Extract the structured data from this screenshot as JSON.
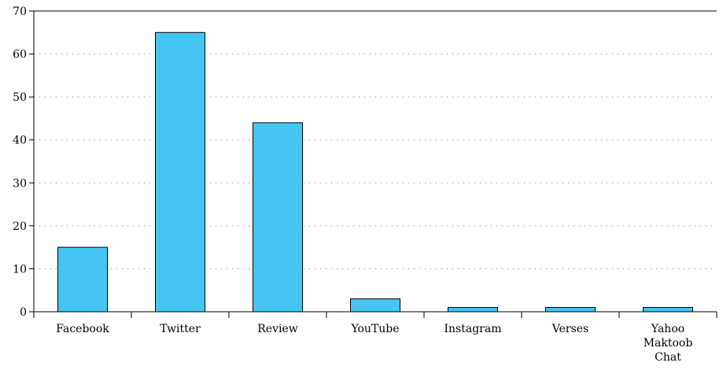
{
  "chart_data": {
    "type": "bar",
    "categories": [
      [
        "Facebook"
      ],
      [
        "Twitter"
      ],
      [
        "Review"
      ],
      [
        "YouTube"
      ],
      [
        "Instagram"
      ],
      [
        "Verses"
      ],
      [
        "Yahoo",
        "Maktoob",
        "Chat"
      ]
    ],
    "values": [
      15,
      65,
      44,
      3,
      1,
      1,
      1
    ],
    "title": "",
    "xlabel": "",
    "ylabel": "",
    "ylim": [
      0,
      70
    ],
    "yticks": [
      0,
      10,
      20,
      30,
      40,
      50,
      60,
      70
    ],
    "grid": true,
    "colors": {
      "bar_fill": "#45c6f2",
      "bar_stroke": "#000000"
    }
  }
}
